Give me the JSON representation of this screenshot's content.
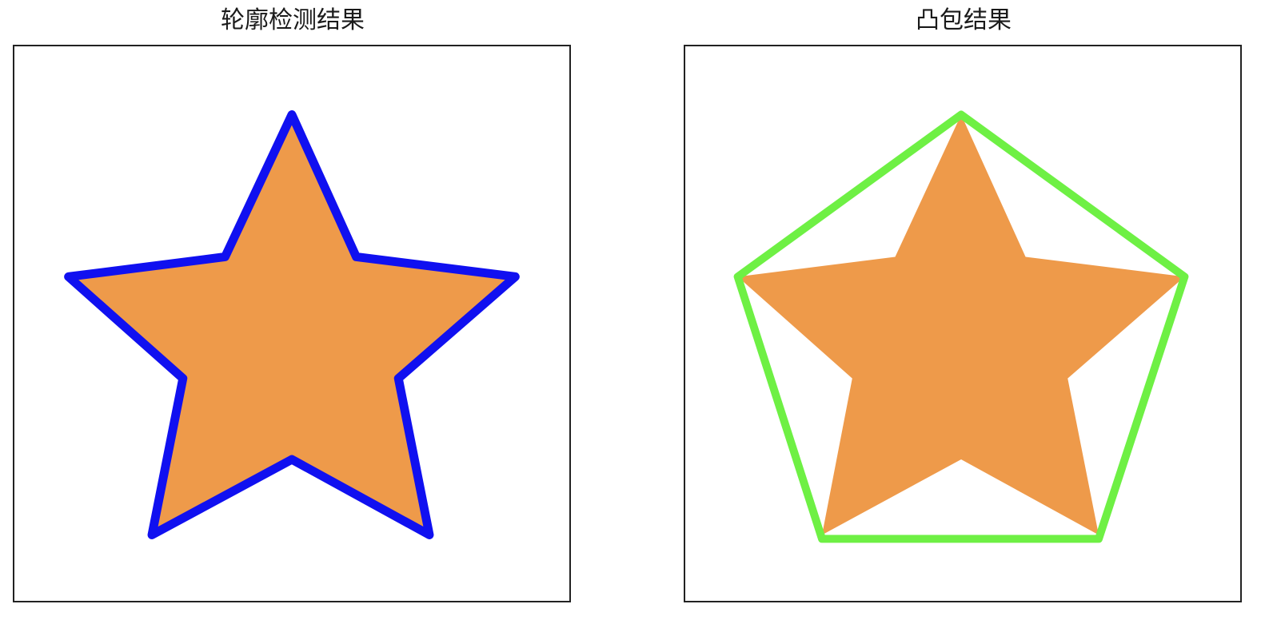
{
  "panels": {
    "contour": {
      "title": "轮廓检测结果"
    },
    "hull": {
      "title": "凸包结果"
    }
  },
  "colors": {
    "star_fill": "#EE9A4A",
    "contour_stroke": "#1010F0",
    "hull_stroke": "#6EF044",
    "frame": "#222222"
  }
}
